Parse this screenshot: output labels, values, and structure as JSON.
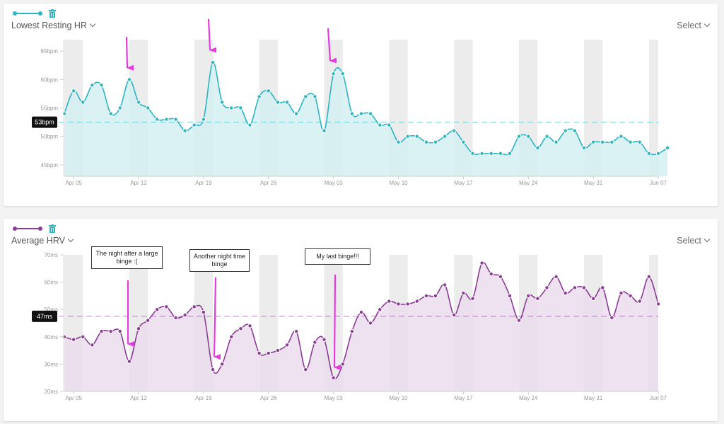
{
  "charts": [
    {
      "id": "hr",
      "metric_label": "Lowest Resting HR",
      "select_label": "Select",
      "color": "#2bb5c0",
      "fill": "#d3eff3",
      "average_label": "53bpm",
      "average": 52.5,
      "y_ticks": [
        "45bpm",
        "50bpm",
        "55bpm",
        "60bpm",
        "65bpm"
      ],
      "icons": {
        "series": "line-dot-icon",
        "delete": "trash-icon"
      }
    },
    {
      "id": "hrv",
      "metric_label": "Average HRV",
      "select_label": "Select",
      "color": "#8b3d95",
      "fill": "#eadced",
      "average_label": "47ms",
      "average": 47.5,
      "y_ticks": [
        "20ms",
        "30ms",
        "40ms",
        "50ms",
        "60ms",
        "70ms"
      ],
      "icons": {
        "series": "line-dot-icon",
        "delete": "trash-icon"
      }
    }
  ],
  "annotations": [
    {
      "text": "The night after a large binge :("
    },
    {
      "text": "Another night time binge"
    },
    {
      "text": "My last binge!!!"
    }
  ],
  "chart_data": [
    {
      "type": "line",
      "title": "Lowest Resting HR",
      "x_tick_labels": [
        "Apr 05",
        "Apr 12",
        "Apr 19",
        "Apr 26",
        "May 03",
        "May 10",
        "May 17",
        "May 24",
        "May 31",
        "Jun 07"
      ],
      "x_start": "Apr 04",
      "x_end": "Jun 07",
      "ylim": [
        43,
        67
      ],
      "grid": false,
      "series": [
        {
          "values": [
            54,
            58,
            56,
            59,
            59,
            54,
            55,
            60,
            56,
            55,
            53,
            53,
            53,
            51,
            52,
            53,
            63,
            56,
            55,
            55,
            52,
            57,
            58,
            56,
            56,
            54,
            57,
            57,
            51,
            61,
            61,
            54,
            54,
            54,
            52,
            52,
            49,
            50,
            50,
            49,
            49,
            50,
            51,
            49,
            47,
            47,
            47,
            47,
            47,
            50,
            50,
            48,
            50,
            49,
            51,
            51,
            48,
            49,
            49,
            49,
            50,
            49,
            49,
            47,
            47,
            48
          ]
        }
      ]
    },
    {
      "type": "line",
      "title": "Average HRV",
      "x_tick_labels": [
        "Apr 05",
        "Apr 12",
        "Apr 19",
        "Apr 26",
        "May 03",
        "May 10",
        "May 17",
        "May 24",
        "May 31",
        "Jun 07"
      ],
      "x_start": "Apr 04",
      "x_end": "Jun 07",
      "ylim": [
        20,
        70
      ],
      "grid": false,
      "series": [
        {
          "values": [
            40,
            39,
            40,
            37,
            42,
            42,
            42,
            31,
            43,
            46,
            50,
            51,
            47,
            48,
            51,
            49,
            28,
            30,
            40,
            43,
            44,
            34,
            34,
            35,
            37,
            42,
            28,
            38,
            39,
            25,
            30,
            42,
            49,
            45,
            50,
            53,
            52,
            52,
            53,
            55,
            55,
            59,
            48,
            56,
            54,
            67,
            63,
            62,
            55,
            46,
            55,
            54,
            58,
            62,
            56,
            58,
            58,
            54,
            58,
            47,
            56,
            55,
            53,
            62,
            52
          ]
        }
      ]
    }
  ]
}
